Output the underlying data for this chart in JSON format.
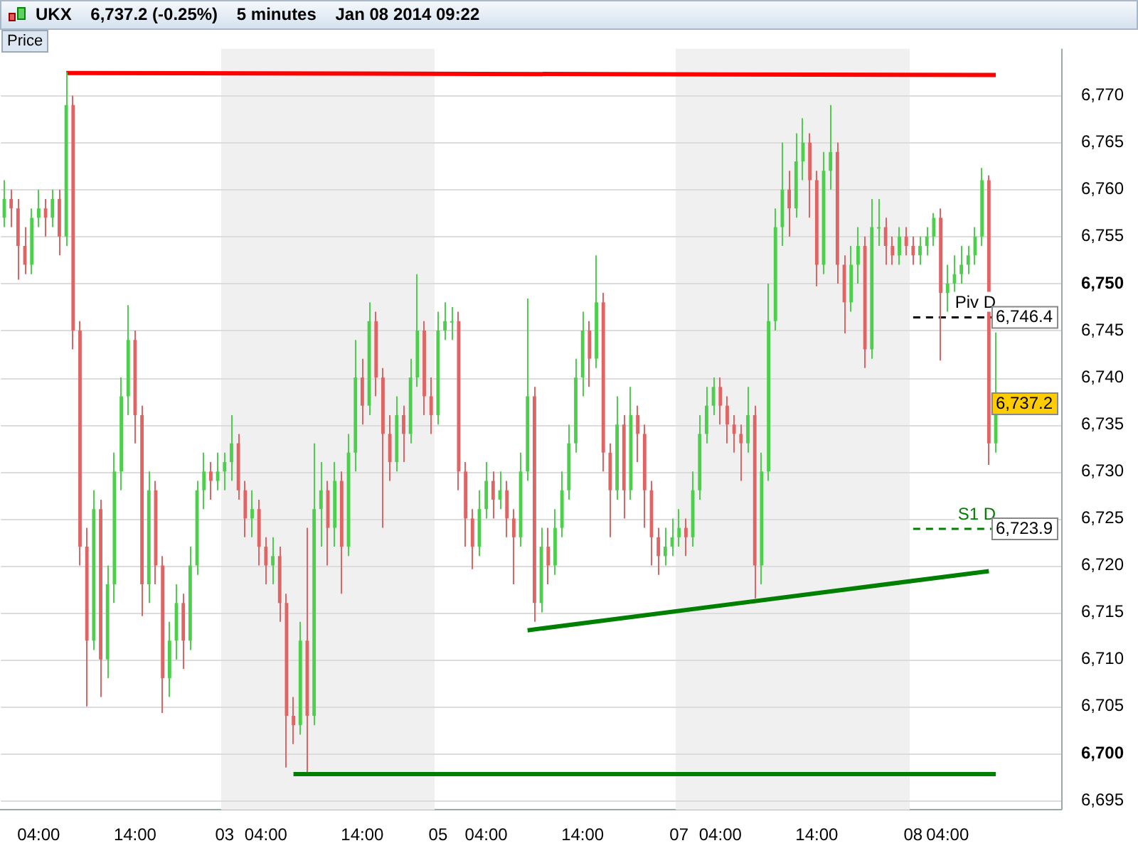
{
  "chart_data": {
    "type": "candlestick",
    "title": "UKX    6,737.2 (-0.25%)    5 minutes    Jan 08 2014 09:22",
    "ylabel": "Price",
    "categories": [
      null,
      null,
      null,
      null,
      null,
      "04:00",
      null,
      null,
      null,
      null,
      null,
      null,
      null,
      null,
      null,
      null,
      null,
      null,
      null,
      "14:00",
      null,
      null,
      null,
      null,
      null,
      null,
      null,
      null,
      null,
      null,
      null,
      null,
      "03",
      null,
      null,
      null,
      null,
      null,
      "04:00",
      null,
      null,
      null,
      null,
      null,
      null,
      null,
      null,
      null,
      null,
      null,
      null,
      null,
      "14:00",
      null,
      null,
      null,
      null,
      null,
      null,
      null,
      null,
      null,
      null,
      "05",
      null,
      null,
      null,
      null,
      null,
      null,
      "04:00",
      null,
      null,
      null,
      null,
      null,
      null,
      null,
      null,
      null,
      null,
      null,
      null,
      null,
      "14:00",
      null,
      null,
      null,
      null,
      null,
      null,
      null,
      null,
      null,
      null,
      null,
      null,
      null,
      "07",
      null,
      null,
      null,
      null,
      null,
      "04:00",
      null,
      null,
      null,
      null,
      null,
      null,
      null,
      null,
      null,
      null,
      null,
      null,
      null,
      "14:00",
      null,
      null,
      null,
      null,
      null,
      null,
      null,
      null,
      null,
      null,
      null,
      null,
      null,
      "08",
      null,
      null,
      null,
      null,
      "04:00",
      null,
      null,
      null,
      null,
      null,
      null,
      null
    ],
    "ohlc": [
      [
        6757,
        6761,
        6756,
        6759
      ],
      [
        6759,
        6760,
        6756,
        6758
      ],
      [
        6758,
        6759,
        6750.4,
        6754
      ],
      [
        6754,
        6756,
        6751,
        6752
      ],
      [
        6752,
        6758,
        6751,
        6757
      ],
      [
        6757,
        6760,
        6756,
        6758
      ],
      [
        6758,
        6759,
        6755,
        6757
      ],
      [
        6757,
        6760,
        6756,
        6759
      ],
      [
        6759,
        6760,
        6753,
        6755
      ],
      [
        6755,
        6772.5,
        6754,
        6769
      ],
      [
        6769,
        6770,
        6743,
        6745
      ],
      [
        6745,
        6746,
        6720,
        6722
      ],
      [
        6722,
        6724,
        6705,
        6712
      ],
      [
        6712,
        6728,
        6711,
        6726
      ],
      [
        6726,
        6727,
        6706,
        6710
      ],
      [
        6710,
        6720,
        6708,
        6718
      ],
      [
        6718,
        6732,
        6716,
        6730
      ],
      [
        6730,
        6740,
        6728,
        6738
      ],
      [
        6738,
        6747.7,
        6736,
        6744
      ],
      [
        6744,
        6745,
        6733,
        6736
      ],
      [
        6736,
        6737,
        6714.6,
        6718
      ],
      [
        6718,
        6730,
        6716,
        6728
      ],
      [
        6728,
        6729,
        6718,
        6720
      ],
      [
        6720,
        6721,
        6704.3,
        6708
      ],
      [
        6708,
        6714,
        6706,
        6712
      ],
      [
        6712,
        6718,
        6710,
        6716
      ],
      [
        6716,
        6717,
        6709,
        6712
      ],
      [
        6712,
        6722,
        6711,
        6720
      ],
      [
        6720,
        6729,
        6719,
        6728
      ],
      [
        6728,
        6732,
        6726,
        6730
      ],
      [
        6730,
        6731,
        6727,
        6729
      ],
      [
        6729,
        6732,
        6728,
        6730
      ],
      [
        6730,
        6732,
        6728,
        6731
      ],
      [
        6731,
        6736,
        6729,
        6733
      ],
      [
        6733,
        6734,
        6727,
        6728
      ],
      [
        6728,
        6729,
        6723,
        6725
      ],
      [
        6725,
        6728,
        6723,
        6726
      ],
      [
        6726,
        6727,
        6720,
        6722
      ],
      [
        6722,
        6723,
        6718,
        6720
      ],
      [
        6720,
        6723,
        6718,
        6721
      ],
      [
        6721,
        6722,
        6714,
        6716
      ],
      [
        6716,
        6717,
        6698.5,
        6704
      ],
      [
        6704,
        6706,
        6701,
        6703
      ],
      [
        6703,
        6714,
        6702,
        6712
      ],
      [
        6712,
        6724,
        6698,
        6704
      ],
      [
        6704,
        6733,
        6703,
        6726
      ],
      [
        6726,
        6731,
        6722,
        6728
      ],
      [
        6728,
        6729,
        6720,
        6724
      ],
      [
        6724,
        6731,
        6722,
        6729
      ],
      [
        6729,
        6730,
        6717,
        6722
      ],
      [
        6722,
        6734,
        6721,
        6732
      ],
      [
        6732,
        6744,
        6730,
        6740
      ],
      [
        6740,
        6742,
        6735,
        6737
      ],
      [
        6737,
        6748,
        6736,
        6746
      ],
      [
        6746,
        6747,
        6738,
        6740
      ],
      [
        6740,
        6741,
        6724,
        6734
      ],
      [
        6734,
        6736,
        6729,
        6731
      ],
      [
        6731,
        6738,
        6730,
        6736
      ],
      [
        6736,
        6737,
        6731,
        6734
      ],
      [
        6734,
        6742,
        6733,
        6740
      ],
      [
        6740,
        6751,
        6739,
        6745
      ],
      [
        6745,
        6746,
        6736,
        6738
      ],
      [
        6738,
        6740,
        6734,
        6736
      ],
      [
        6736,
        6747,
        6735,
        6745
      ],
      [
        6745,
        6748,
        6744,
        6746
      ],
      [
        6746,
        6747.5,
        6744,
        6746
      ],
      [
        6746,
        6747,
        6728,
        6730
      ],
      [
        6730,
        6731,
        6722,
        6725
      ],
      [
        6725,
        6726,
        6719.6,
        6722
      ],
      [
        6722,
        6728,
        6721,
        6726
      ],
      [
        6726,
        6731,
        6725,
        6729
      ],
      [
        6729,
        6730,
        6725,
        6727
      ],
      [
        6727,
        6730,
        6726,
        6728
      ],
      [
        6728,
        6729,
        6723,
        6725
      ],
      [
        6725,
        6726,
        6718,
        6723
      ],
      [
        6723,
        6732,
        6722,
        6730
      ],
      [
        6730,
        6748.4,
        6729,
        6738
      ],
      [
        6738,
        6739,
        6714,
        6716
      ],
      [
        6716,
        6724,
        6715,
        6722
      ],
      [
        6722,
        6724,
        6718,
        6720
      ],
      [
        6720,
        6726,
        6719,
        6724
      ],
      [
        6724,
        6730,
        6723,
        6728
      ],
      [
        6728,
        6735,
        6727,
        6733
      ],
      [
        6733,
        6742,
        6732,
        6740
      ],
      [
        6740,
        6747,
        6738,
        6745
      ],
      [
        6745,
        6746,
        6739,
        6742
      ],
      [
        6742,
        6753,
        6741,
        6748
      ],
      [
        6748,
        6749,
        6730,
        6732
      ],
      [
        6732,
        6733,
        6723,
        6728
      ],
      [
        6728,
        6738,
        6727,
        6735
      ],
      [
        6735,
        6736,
        6725,
        6728
      ],
      [
        6728,
        6739,
        6727,
        6736
      ],
      [
        6736,
        6737,
        6731,
        6734
      ],
      [
        6734,
        6735,
        6724,
        6728
      ],
      [
        6728,
        6729,
        6720,
        6723
      ],
      [
        6723,
        6724,
        6719,
        6721
      ],
      [
        6721,
        6724,
        6720,
        6722
      ],
      [
        6722,
        6725,
        6721,
        6723
      ],
      [
        6723,
        6726,
        6722,
        6724
      ],
      [
        6724,
        6725,
        6721,
        6723
      ],
      [
        6723,
        6730,
        6722,
        6728
      ],
      [
        6728,
        6736,
        6727,
        6734
      ],
      [
        6734,
        6739,
        6733,
        6737
      ],
      [
        6737,
        6740,
        6736,
        6739
      ],
      [
        6739,
        6740,
        6735,
        6737
      ],
      [
        6737,
        6738,
        6733,
        6735
      ],
      [
        6735,
        6736,
        6732,
        6734
      ],
      [
        6734,
        6735,
        6729,
        6733
      ],
      [
        6733,
        6739,
        6732,
        6736
      ],
      [
        6736,
        6737,
        6716.5,
        6720
      ],
      [
        6720,
        6732,
        6718,
        6730
      ],
      [
        6730,
        6750,
        6729,
        6746
      ],
      [
        6746,
        6758,
        6745,
        6756
      ],
      [
        6756,
        6765,
        6754,
        6760
      ],
      [
        6760,
        6762,
        6755,
        6758
      ],
      [
        6758,
        6766,
        6757,
        6763
      ],
      [
        6763,
        6767.6,
        6761,
        6765
      ],
      [
        6765,
        6766,
        6757,
        6761
      ],
      [
        6761,
        6762,
        6749.7,
        6752
      ],
      [
        6752,
        6764,
        6751,
        6762
      ],
      [
        6762,
        6769,
        6760,
        6764
      ],
      [
        6764,
        6765,
        6750,
        6752
      ],
      [
        6752,
        6753,
        6744.7,
        6748
      ],
      [
        6748,
        6754,
        6747,
        6752
      ],
      [
        6752,
        6756,
        6750,
        6754
      ],
      [
        6754,
        6755,
        6741,
        6743
      ],
      [
        6743,
        6759,
        6742,
        6756
      ],
      [
        6756,
        6759,
        6754,
        6756
      ],
      [
        6756,
        6757,
        6752,
        6754
      ],
      [
        6754,
        6755,
        6752,
        6753
      ],
      [
        6753,
        6756,
        6752,
        6755
      ],
      [
        6755,
        6756,
        6753,
        6754
      ],
      [
        6754,
        6755,
        6752,
        6753
      ],
      [
        6753,
        6755,
        6752,
        6754
      ],
      [
        6754,
        6756,
        6753,
        6755
      ],
      [
        6755,
        6757.5,
        6754,
        6757
      ],
      [
        6757,
        6758,
        6741.8,
        6749
      ],
      [
        6749,
        6752,
        6747,
        6750
      ],
      [
        6750,
        6753,
        6749,
        6751
      ],
      [
        6751,
        6754,
        6750,
        6752
      ],
      [
        6752,
        6754,
        6751,
        6753
      ],
      [
        6753,
        6756,
        6752,
        6755
      ],
      [
        6755,
        6762.3,
        6754,
        6761
      ],
      [
        6761,
        6761.5,
        6730.7,
        6733
      ],
      [
        6733,
        6744.8,
        6732,
        6737.2
      ]
    ],
    "series": [
      {
        "type": "line",
        "color": "#ff0000",
        "values": [
          null,
          null,
          null,
          null,
          null,
          null,
          null,
          null,
          null,
          6772.4,
          null,
          null,
          null,
          null,
          null,
          null,
          null,
          null,
          null,
          null,
          null,
          null,
          null,
          null,
          null,
          null,
          null,
          null,
          null,
          null,
          null,
          null,
          null,
          null,
          null,
          null,
          null,
          null,
          null,
          null,
          null,
          null,
          null,
          null,
          null,
          null,
          null,
          null,
          null,
          null,
          null,
          null,
          null,
          null,
          null,
          null,
          null,
          null,
          null,
          null,
          null,
          null,
          null,
          null,
          null,
          null,
          null,
          null,
          null,
          null,
          null,
          null,
          null,
          null,
          null,
          null,
          null,
          null,
          null,
          null,
          null,
          null,
          null,
          null,
          null,
          null,
          null,
          null,
          null,
          null,
          null,
          null,
          null,
          null,
          null,
          null,
          null,
          null,
          null,
          null,
          null,
          null,
          null,
          null,
          null,
          null,
          null,
          null,
          null,
          null,
          null,
          null,
          null,
          null,
          null,
          null,
          null,
          null,
          null,
          null,
          null,
          null,
          null,
          null,
          null,
          null,
          null,
          null,
          null,
          null,
          null,
          null,
          null,
          null,
          null,
          null,
          null,
          null,
          null,
          null,
          null,
          null,
          null,
          null,
          6772.2
        ]
      },
      {
        "type": "line",
        "color": "#008000",
        "values": [
          null,
          null,
          null,
          null,
          null,
          null,
          null,
          null,
          null,
          null,
          null,
          null,
          null,
          null,
          null,
          null,
          null,
          null,
          null,
          null,
          null,
          null,
          null,
          null,
          null,
          null,
          null,
          null,
          null,
          null,
          null,
          null,
          null,
          null,
          null,
          null,
          null,
          null,
          null,
          null,
          null,
          null,
          6697.8,
          null,
          null,
          null,
          null,
          null,
          null,
          null,
          null,
          null,
          null,
          null,
          null,
          null,
          null,
          null,
          null,
          null,
          null,
          null,
          null,
          null,
          null,
          null,
          null,
          null,
          null,
          null,
          null,
          null,
          null,
          null,
          null,
          null,
          null,
          null,
          null,
          null,
          null,
          null,
          null,
          null,
          null,
          null,
          null,
          null,
          null,
          null,
          null,
          null,
          null,
          null,
          null,
          null,
          null,
          null,
          null,
          null,
          null,
          null,
          null,
          null,
          null,
          null,
          null,
          null,
          null,
          null,
          null,
          null,
          null,
          null,
          null,
          null,
          null,
          null,
          null,
          null,
          null,
          null,
          null,
          null,
          null,
          null,
          null,
          null,
          null,
          null,
          null,
          null,
          null,
          null,
          null,
          null,
          null,
          null,
          null,
          null,
          null,
          null,
          null,
          null,
          6697.8
        ]
      },
      {
        "type": "line",
        "color": "#008000",
        "values": [
          null,
          null,
          null,
          null,
          null,
          null,
          null,
          null,
          null,
          null,
          null,
          null,
          null,
          null,
          null,
          null,
          null,
          null,
          null,
          null,
          null,
          null,
          null,
          null,
          null,
          null,
          null,
          null,
          null,
          null,
          null,
          null,
          null,
          null,
          null,
          null,
          null,
          null,
          null,
          null,
          null,
          null,
          null,
          null,
          null,
          null,
          null,
          null,
          null,
          null,
          null,
          null,
          null,
          null,
          null,
          null,
          null,
          null,
          null,
          null,
          null,
          null,
          null,
          null,
          null,
          null,
          null,
          null,
          null,
          null,
          null,
          null,
          null,
          null,
          null,
          null,
          6713.1,
          null,
          null,
          null,
          null,
          null,
          null,
          null,
          null,
          null,
          null,
          null,
          null,
          null,
          null,
          null,
          null,
          null,
          null,
          null,
          null,
          null,
          null,
          null,
          null,
          null,
          null,
          null,
          null,
          null,
          null,
          null,
          null,
          null,
          null,
          null,
          null,
          null,
          null,
          null,
          null,
          null,
          null,
          null,
          null,
          null,
          null,
          null,
          null,
          null,
          null,
          null,
          null,
          null,
          null,
          null,
          null,
          null,
          null,
          null,
          null,
          null,
          null,
          null,
          null,
          null,
          null,
          6719.4,
          null
        ]
      },
      {
        "type": "line",
        "name": "Piv D",
        "color": "#000000",
        "line_style": "dashed",
        "value_labels": [
          null,
          null,
          null,
          null,
          null,
          null,
          null,
          null,
          null,
          null,
          null,
          null,
          null,
          null,
          null,
          null,
          null,
          null,
          null,
          null,
          null,
          null,
          null,
          null,
          null,
          null,
          null,
          null,
          null,
          null,
          null,
          null,
          null,
          null,
          null,
          null,
          null,
          null,
          null,
          null,
          null,
          null,
          null,
          null,
          null,
          null,
          null,
          null,
          null,
          null,
          null,
          null,
          null,
          null,
          null,
          null,
          null,
          null,
          null,
          null,
          null,
          null,
          null,
          null,
          null,
          null,
          null,
          null,
          null,
          null,
          null,
          null,
          null,
          null,
          null,
          null,
          null,
          null,
          null,
          null,
          null,
          null,
          null,
          null,
          null,
          null,
          null,
          null,
          null,
          null,
          null,
          null,
          null,
          null,
          null,
          null,
          null,
          null,
          null,
          null,
          null,
          null,
          null,
          null,
          null,
          null,
          null,
          null,
          null,
          null,
          null,
          null,
          null,
          null,
          null,
          null,
          null,
          null,
          null,
          null,
          null,
          null,
          null,
          null,
          null,
          null,
          null,
          null,
          null,
          null,
          null,
          null,
          null,
          null,
          null,
          null,
          null,
          null,
          null,
          null,
          null,
          null,
          null,
          null,
          "6,746.4"
        ],
        "values": [
          null,
          null,
          null,
          null,
          null,
          null,
          null,
          null,
          null,
          null,
          null,
          null,
          null,
          null,
          null,
          null,
          null,
          null,
          null,
          null,
          null,
          null,
          null,
          null,
          null,
          null,
          null,
          null,
          null,
          null,
          null,
          null,
          null,
          null,
          null,
          null,
          null,
          null,
          null,
          null,
          null,
          null,
          null,
          null,
          null,
          null,
          null,
          null,
          null,
          null,
          null,
          null,
          null,
          null,
          null,
          null,
          null,
          null,
          null,
          null,
          null,
          null,
          null,
          null,
          null,
          null,
          null,
          null,
          null,
          null,
          null,
          null,
          null,
          null,
          null,
          null,
          null,
          null,
          null,
          null,
          null,
          null,
          null,
          null,
          null,
          null,
          null,
          null,
          null,
          null,
          null,
          null,
          null,
          null,
          null,
          null,
          null,
          null,
          null,
          null,
          null,
          null,
          null,
          null,
          null,
          null,
          null,
          null,
          null,
          null,
          null,
          null,
          null,
          null,
          null,
          null,
          null,
          null,
          null,
          null,
          null,
          null,
          null,
          null,
          null,
          null,
          null,
          null,
          null,
          null,
          null,
          null,
          6746.4,
          6746.4,
          6746.4,
          6746.4,
          6746.4,
          6746.4,
          6746.4,
          6746.4,
          6746.4,
          6746.4,
          6746.4,
          6746.4,
          6746.4
        ]
      },
      {
        "type": "line",
        "name": "S1 D",
        "color": "#008000",
        "line_style": "dashed",
        "value_labels": [
          null,
          null,
          null,
          null,
          null,
          null,
          null,
          null,
          null,
          null,
          null,
          null,
          null,
          null,
          null,
          null,
          null,
          null,
          null,
          null,
          null,
          null,
          null,
          null,
          null,
          null,
          null,
          null,
          null,
          null,
          null,
          null,
          null,
          null,
          null,
          null,
          null,
          null,
          null,
          null,
          null,
          null,
          null,
          null,
          null,
          null,
          null,
          null,
          null,
          null,
          null,
          null,
          null,
          null,
          null,
          null,
          null,
          null,
          null,
          null,
          null,
          null,
          null,
          null,
          null,
          null,
          null,
          null,
          null,
          null,
          null,
          null,
          null,
          null,
          null,
          null,
          null,
          null,
          null,
          null,
          null,
          null,
          null,
          null,
          null,
          null,
          null,
          null,
          null,
          null,
          null,
          null,
          null,
          null,
          null,
          null,
          null,
          null,
          null,
          null,
          null,
          null,
          null,
          null,
          null,
          null,
          null,
          null,
          null,
          null,
          null,
          null,
          null,
          null,
          null,
          null,
          null,
          null,
          null,
          null,
          null,
          null,
          null,
          null,
          null,
          null,
          null,
          null,
          null,
          null,
          null,
          null,
          null,
          null,
          null,
          null,
          null,
          null,
          null,
          null,
          null,
          null,
          null,
          null,
          "6,723.9"
        ],
        "values": [
          null,
          null,
          null,
          null,
          null,
          null,
          null,
          null,
          null,
          null,
          null,
          null,
          null,
          null,
          null,
          null,
          null,
          null,
          null,
          null,
          null,
          null,
          null,
          null,
          null,
          null,
          null,
          null,
          null,
          null,
          null,
          null,
          null,
          null,
          null,
          null,
          null,
          null,
          null,
          null,
          null,
          null,
          null,
          null,
          null,
          null,
          null,
          null,
          null,
          null,
          null,
          null,
          null,
          null,
          null,
          null,
          null,
          null,
          null,
          null,
          null,
          null,
          null,
          null,
          null,
          null,
          null,
          null,
          null,
          null,
          null,
          null,
          null,
          null,
          null,
          null,
          null,
          null,
          null,
          null,
          null,
          null,
          null,
          null,
          null,
          null,
          null,
          null,
          null,
          null,
          null,
          null,
          null,
          null,
          null,
          null,
          null,
          null,
          null,
          null,
          null,
          null,
          null,
          null,
          null,
          null,
          null,
          null,
          null,
          null,
          null,
          null,
          null,
          null,
          null,
          null,
          null,
          null,
          null,
          null,
          null,
          null,
          null,
          null,
          null,
          null,
          null,
          null,
          null,
          null,
          null,
          null,
          6723.9,
          6723.9,
          6723.9,
          6723.9,
          6723.9,
          6723.9,
          6723.9,
          6723.9,
          6723.9,
          6723.9,
          6723.9,
          6723.9,
          6723.9
        ]
      }
    ],
    "bands": [
      {
        "axis": "x",
        "from": "03",
        "to": "05",
        "color": "#f0f0f0"
      },
      {
        "axis": "x",
        "from": "07",
        "to": "08",
        "color": "#f0f0f0"
      }
    ],
    "annotations": [
      "6,737.2"
    ],
    "ylim": [
      6694,
      6775
    ],
    "yticks": [
      {
        "value": 6695,
        "label": "6,695"
      },
      {
        "value": 6700,
        "label": "6,700"
      },
      {
        "value": 6705,
        "label": "6,705"
      },
      {
        "value": 6710,
        "label": "6,710"
      },
      {
        "value": 6715,
        "label": "6,715"
      },
      {
        "value": 6720,
        "label": "6,720"
      },
      {
        "value": 6725,
        "label": "6,725"
      },
      {
        "value": 6730,
        "label": "6,730"
      },
      {
        "value": 6735,
        "label": "6,735"
      },
      {
        "value": 6740,
        "label": "6,740"
      },
      {
        "value": 6745,
        "label": "6,745"
      },
      {
        "value": 6750,
        "label": "6,750"
      },
      {
        "value": 6755,
        "label": "6,755"
      },
      {
        "value": 6760,
        "label": "6,760"
      },
      {
        "value": 6765,
        "label": "6,765"
      },
      {
        "value": 6770,
        "label": "6,770"
      }
    ],
    "grid": "y",
    "legend": false
  }
}
